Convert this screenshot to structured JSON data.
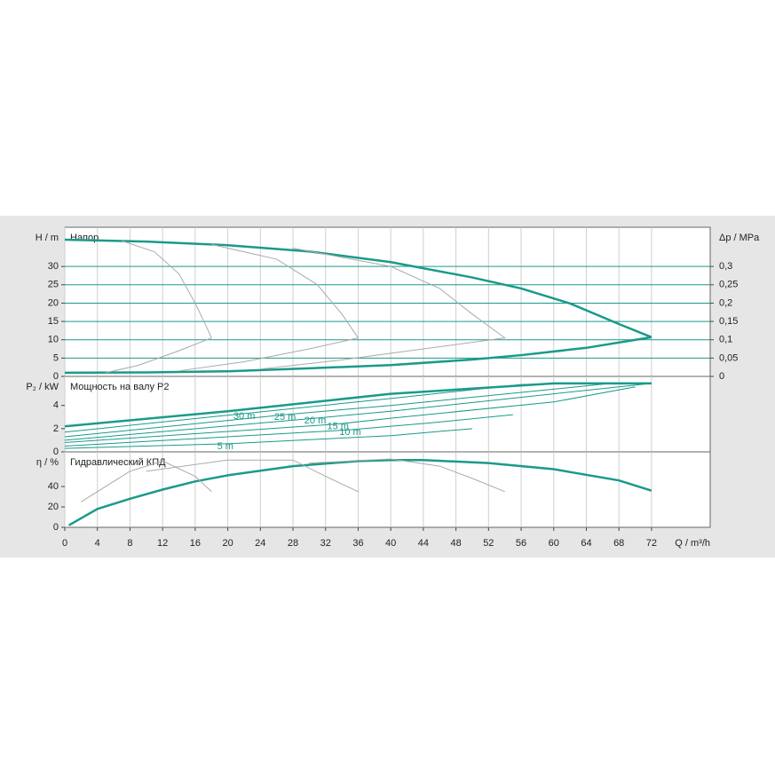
{
  "chart_data": [
    {
      "type": "line",
      "title": "Напор",
      "ylabel": "H / m",
      "y2label": "Δp / MPa",
      "xlim": [
        0,
        79.2
      ],
      "xticks": [
        0,
        4,
        8,
        12,
        16,
        20,
        24,
        28,
        32,
        36,
        40,
        44,
        48,
        52,
        56,
        60,
        64,
        68,
        72
      ],
      "ylim": [
        0,
        40.7
      ],
      "yticks": [
        0,
        5,
        10,
        15,
        20,
        25,
        30
      ],
      "y2lim": [
        0,
        0.407
      ],
      "y2ticks": [
        0,
        {
          "value": 0.05,
          "label": "0,05"
        },
        {
          "value": 0.1,
          "label": "0,1"
        },
        {
          "value": 0.15,
          "label": "0,15"
        },
        {
          "value": 0.2,
          "label": "0,2"
        },
        {
          "value": 0.25,
          "label": "0,25"
        },
        {
          "value": 0.3,
          "label": "0,3"
        }
      ],
      "grid": true,
      "grid_color": "#1a9a8a",
      "series": [
        {
          "color": "#1a9a8a",
          "width": 2.5,
          "x": [
            0,
            10,
            20,
            30,
            40,
            50,
            56,
            62,
            68,
            72
          ],
          "values": [
            37.3,
            36.8,
            35.8,
            34.1,
            31.2,
            27,
            24,
            19.9,
            14.3,
            10.7
          ]
        },
        {
          "color": "#1a9a8a",
          "width": 2.5,
          "x": [
            0,
            10,
            20,
            30,
            40,
            50,
            56,
            64,
            72
          ],
          "values": [
            1,
            1.1,
            1.4,
            2.2,
            3.1,
            4.6,
            5.8,
            7.8,
            10.7
          ]
        },
        {
          "color": "#aaaaaa",
          "width": 1,
          "x": [
            7,
            11,
            14,
            16,
            17.5,
            18,
            14,
            9,
            5
          ],
          "values": [
            37,
            34,
            28,
            20,
            13,
            10.5,
            7,
            3,
            1
          ]
        },
        {
          "color": "#aaaaaa",
          "width": 1,
          "x": [
            18,
            26,
            31,
            34,
            36,
            30,
            22,
            14
          ],
          "values": [
            36,
            32,
            25,
            17,
            10.5,
            7.5,
            4,
            1.5
          ]
        },
        {
          "color": "#aaaaaa",
          "width": 1,
          "x": [
            28,
            40,
            46,
            50,
            54,
            44,
            34,
            24
          ],
          "values": [
            35,
            30,
            24,
            17,
            10.5,
            7.5,
            4.5,
            2
          ]
        }
      ]
    },
    {
      "type": "line",
      "title": "Мощность на валу P2",
      "ylabel": "P₂ / kW",
      "xlim": [
        0,
        79.2
      ],
      "xticks": [
        0,
        4,
        8,
        12,
        16,
        20,
        24,
        28,
        32,
        36,
        40,
        44,
        48,
        52,
        56,
        60,
        64,
        68,
        72
      ],
      "ylim": [
        0,
        6.5
      ],
      "yticks": [
        0,
        2,
        4
      ],
      "series": [
        {
          "color": "#1a9a8a",
          "width": 2.5,
          "x": [
            0,
            20,
            40,
            60,
            72
          ],
          "values": [
            2.2,
            3.5,
            5.0,
            5.9,
            5.9
          ]
        },
        {
          "name": "30 m",
          "color": "#1a9a8a",
          "width": 1,
          "x": [
            0,
            22,
            40,
            56,
            62
          ],
          "values": [
            1.7,
            3.3,
            4.6,
            5.8,
            5.9
          ]
        },
        {
          "name": "25 m",
          "color": "#1a9a8a",
          "width": 1,
          "x": [
            0,
            27,
            40,
            60,
            67
          ],
          "values": [
            1.3,
            3.2,
            4.0,
            5.4,
            5.9
          ]
        },
        {
          "name": "20 m",
          "color": "#1a9a8a",
          "width": 1,
          "x": [
            0,
            30.7,
            40,
            60,
            72
          ],
          "values": [
            1.0,
            2.9,
            3.5,
            5.0,
            5.9
          ]
        },
        {
          "name": "15 m",
          "color": "#1a9a8a",
          "width": 1,
          "x": [
            0,
            33.5,
            40,
            60,
            70
          ],
          "values": [
            0.8,
            2.4,
            2.9,
            4.3,
            5.6
          ]
        },
        {
          "name": "10 m",
          "color": "#1a9a8a",
          "width": 1,
          "x": [
            0,
            35,
            45,
            55
          ],
          "values": [
            0.5,
            1.9,
            2.5,
            3.2
          ]
        },
        {
          "name": "5 m",
          "color": "#1a9a8a",
          "width": 1,
          "x": [
            0,
            20,
            40,
            50
          ],
          "values": [
            0.3,
            0.7,
            1.4,
            2.0
          ]
        }
      ]
    },
    {
      "type": "line",
      "title": "Гидравлический КПД",
      "ylabel": "η / %",
      "xlabel": "Q / m³/h",
      "xlim": [
        0,
        79.2
      ],
      "xticks": [
        0,
        4,
        8,
        12,
        16,
        20,
        24,
        28,
        32,
        36,
        40,
        44,
        48,
        52,
        56,
        60,
        64,
        68,
        72
      ],
      "ylim": [
        0,
        74
      ],
      "yticks": [
        0,
        20,
        40
      ],
      "series": [
        {
          "color": "#1a9a8a",
          "width": 2.5,
          "x": [
            0.5,
            4,
            8,
            12,
            16,
            20,
            28,
            36,
            40,
            44,
            52,
            60,
            68,
            72
          ],
          "values": [
            2,
            18,
            28,
            37,
            45,
            51,
            60,
            65,
            66,
            66,
            63,
            57,
            46,
            36
          ]
        },
        {
          "color": "#aaaaaa",
          "width": 1,
          "x": [
            2,
            8,
            12,
            16,
            18
          ],
          "values": [
            25,
            55,
            65,
            50,
            35
          ]
        },
        {
          "color": "#aaaaaa",
          "width": 1,
          "x": [
            10,
            20,
            28,
            32,
            36
          ],
          "values": [
            55,
            66,
            66,
            50,
            35
          ]
        },
        {
          "color": "#aaaaaa",
          "width": 1,
          "x": [
            30,
            40,
            46,
            50,
            54
          ],
          "values": [
            63,
            67,
            60,
            48,
            35
          ]
        }
      ]
    }
  ]
}
